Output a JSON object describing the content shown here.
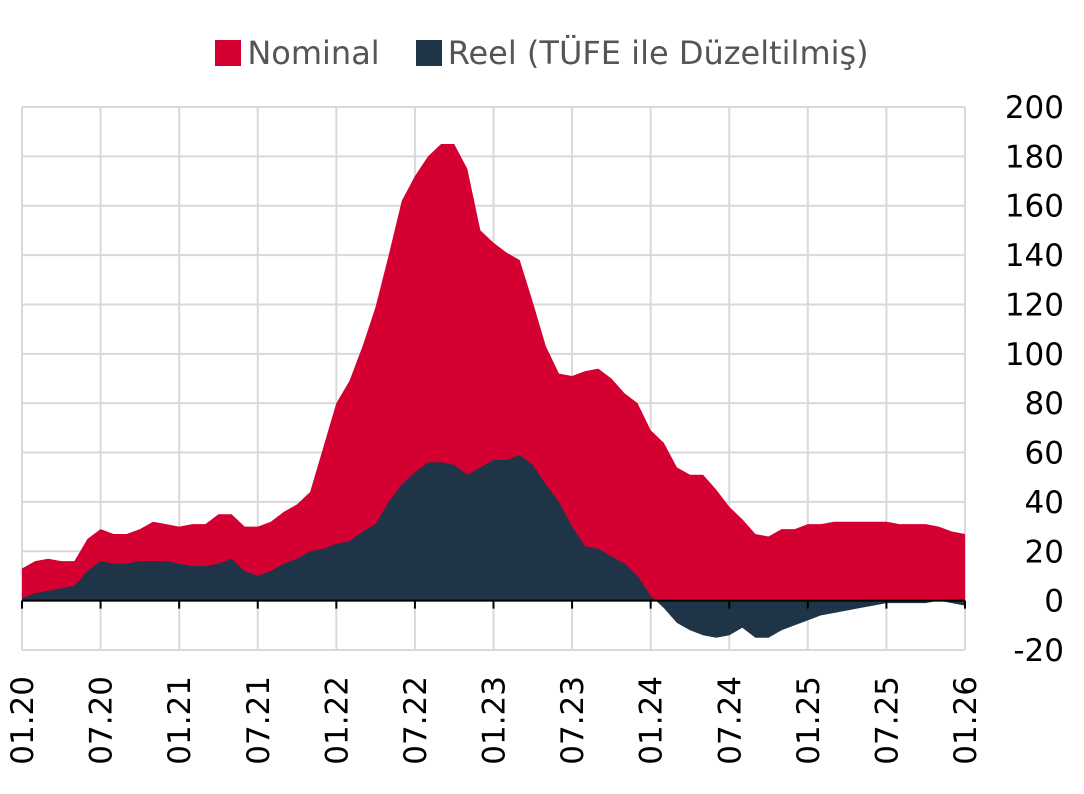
{
  "chart_data": {
    "type": "area",
    "title": "",
    "xlabel": "",
    "ylabel": "",
    "ylim": [
      -20,
      200
    ],
    "yticks": [
      200,
      180,
      160,
      140,
      120,
      100,
      80,
      60,
      40,
      20,
      0,
      -20
    ],
    "ytick_labels": [
      "200",
      "180",
      "160",
      "140",
      "120",
      "100",
      "80",
      "60",
      "40",
      "20",
      "0",
      "-20"
    ],
    "xtick_labels": [
      "01.20",
      "07.20",
      "01.21",
      "07.21",
      "01.22",
      "07.22",
      "01.23",
      "07.23",
      "01.24",
      "07.24",
      "01.25",
      "07.25",
      "01.26"
    ],
    "x_start": "01.20",
    "x_end": "01.26",
    "grid": true,
    "legend_position": "top",
    "colors": {
      "nominal": "#d50032",
      "reel": "#203448",
      "grid": "#d9d9d9",
      "axis": "#000000"
    },
    "series": [
      {
        "name": "Nominal",
        "values": [
          13,
          16,
          17,
          16,
          16,
          25,
          29,
          27,
          27,
          29,
          32,
          31,
          30,
          31,
          31,
          35,
          35,
          30,
          30,
          32,
          36,
          39,
          44,
          62,
          80,
          89,
          103,
          119,
          140,
          162,
          172,
          180,
          185,
          185,
          175,
          150,
          145,
          141,
          138,
          121,
          103,
          92,
          91,
          93,
          94,
          90,
          84,
          80,
          69,
          64,
          54,
          51,
          51,
          45,
          38,
          33,
          27,
          26,
          29,
          29,
          31,
          31,
          32,
          32,
          32,
          32,
          32,
          31,
          31,
          31,
          30,
          28,
          27
        ]
      },
      {
        "name": "Reel (TÜFE ile Düzeltilmiş)",
        "values": [
          1,
          3,
          4,
          5,
          6,
          12,
          16,
          15,
          15,
          16,
          16,
          16,
          15,
          14,
          14,
          15,
          17,
          12,
          10,
          12,
          15,
          17,
          20,
          21,
          23,
          24,
          28,
          31,
          40,
          47,
          52,
          56,
          56,
          55,
          51,
          54,
          57,
          57,
          59,
          55,
          47,
          40,
          30,
          22,
          21,
          18,
          15,
          10,
          2,
          -3,
          -9,
          -12,
          -14,
          -15,
          -14,
          -11,
          -15,
          -15,
          -12,
          -10,
          -8,
          -6,
          -5,
          -4,
          -3,
          -2,
          -1,
          -1,
          -1,
          -1,
          0,
          -1,
          -2
        ]
      }
    ]
  },
  "legend": {
    "items": [
      {
        "label": "Nominal",
        "color": "#d50032"
      },
      {
        "label": "Reel (TÜFE ile Düzeltilmiş)",
        "color": "#203448"
      }
    ]
  }
}
